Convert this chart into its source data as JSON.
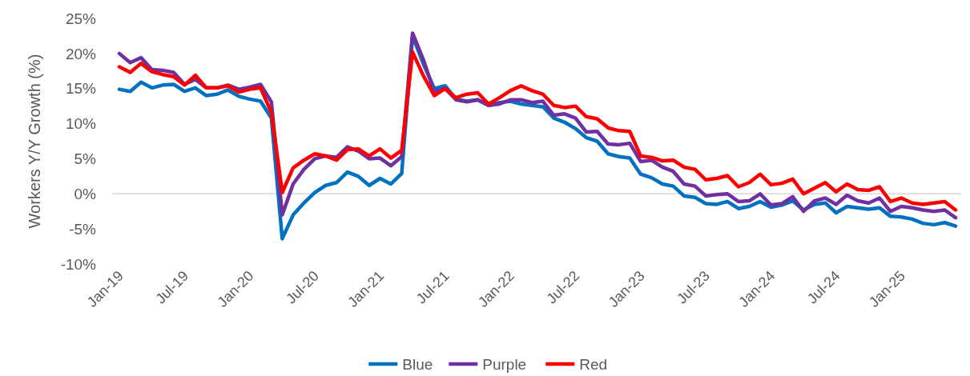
{
  "chart_data": {
    "type": "line",
    "ylabel": "Workers Y/Y Growth (%)",
    "categories": [
      "Jan-19",
      null,
      null,
      null,
      null,
      null,
      "Jul-19",
      null,
      null,
      null,
      null,
      null,
      "Jan-20",
      null,
      null,
      null,
      null,
      null,
      "Jul-20",
      null,
      null,
      null,
      null,
      null,
      "Jan-21",
      null,
      null,
      null,
      null,
      null,
      "Jul-21",
      null,
      null,
      null,
      null,
      null,
      "Jan-22",
      null,
      null,
      null,
      null,
      null,
      "Jul-22",
      null,
      null,
      null,
      null,
      null,
      "Jan-23",
      null,
      null,
      null,
      null,
      null,
      "Jul-23",
      null,
      null,
      null,
      null,
      null,
      "Jan-24",
      null,
      null,
      null,
      null,
      null,
      "Jul-24",
      null,
      null,
      null,
      null,
      null,
      "Jan-25",
      null,
      null,
      null,
      null,
      null
    ],
    "ylim": [
      -10,
      25
    ],
    "yticks": [
      {
        "value": -10,
        "label": "-10%"
      },
      {
        "value": -5,
        "label": "-5%"
      },
      {
        "value": 0,
        "label": "0%"
      },
      {
        "value": 5,
        "label": "5%"
      },
      {
        "value": 10,
        "label": "10%"
      },
      {
        "value": 15,
        "label": "15%"
      },
      {
        "value": 20,
        "label": "20%"
      },
      {
        "value": 25,
        "label": "25%"
      }
    ],
    "ref_lines": [
      {
        "axis": "y",
        "value": 0,
        "color": "#d9d9d9"
      }
    ],
    "legend": "bottom",
    "marker": "none",
    "line_style": "solid",
    "series": [
      {
        "name": "Blue",
        "color": "#0070c0",
        "values": [
          14.9,
          14.6,
          15.9,
          15.1,
          15.5,
          15.6,
          14.6,
          15.1,
          14.0,
          14.2,
          14.8,
          13.9,
          13.5,
          13.2,
          10.8,
          -6.4,
          -3.0,
          -1.3,
          0.2,
          1.2,
          1.6,
          3.1,
          2.5,
          1.2,
          2.2,
          1.4,
          2.9,
          22.5,
          18.5,
          15.0,
          15.4,
          13.5,
          13.2,
          13.4,
          12.6,
          13.0,
          13.2,
          12.8,
          12.6,
          12.4,
          10.8,
          10.2,
          9.3,
          8.0,
          7.5,
          5.7,
          5.3,
          5.1,
          2.8,
          2.3,
          1.4,
          1.1,
          -0.3,
          -0.5,
          -1.4,
          -1.5,
          -1.1,
          -2.1,
          -1.8,
          -1.1,
          -1.9,
          -1.6,
          -1.0,
          -2.3,
          -1.5,
          -1.3,
          -2.7,
          -1.8,
          -2.0,
          -2.2,
          -2.0,
          -3.2,
          -3.3,
          -3.6,
          -4.2,
          -4.4,
          -4.1,
          -4.6
        ]
      },
      {
        "name": "Purple",
        "color": "#7030a0",
        "values": [
          20.0,
          18.7,
          19.4,
          17.7,
          17.6,
          17.3,
          15.6,
          16.3,
          15.1,
          15.1,
          15.5,
          14.9,
          15.2,
          15.6,
          13.1,
          -3.0,
          1.4,
          3.5,
          5.0,
          5.4,
          5.2,
          6.7,
          6.1,
          5.0,
          5.1,
          4.0,
          5.3,
          22.9,
          19.1,
          14.5,
          15.0,
          13.4,
          13.1,
          13.4,
          12.6,
          12.8,
          13.4,
          13.4,
          13.0,
          13.2,
          11.2,
          11.4,
          10.8,
          8.8,
          8.9,
          7.1,
          7.0,
          7.2,
          4.6,
          4.8,
          3.8,
          3.2,
          1.4,
          1.1,
          -0.3,
          -0.1,
          0.0,
          -1.1,
          -1.0,
          0.0,
          -1.6,
          -1.4,
          -0.4,
          -2.5,
          -1.0,
          -0.6,
          -1.5,
          -0.2,
          -1.0,
          -1.3,
          -0.6,
          -2.5,
          -1.8,
          -2.0,
          -2.3,
          -2.5,
          -2.3,
          -3.4
        ]
      },
      {
        "name": "Red",
        "color": "#ff0000",
        "values": [
          18.1,
          17.3,
          18.6,
          17.4,
          17.0,
          16.7,
          15.5,
          16.9,
          15.1,
          15.1,
          15.4,
          14.5,
          14.9,
          15.1,
          11.6,
          0.2,
          3.7,
          4.8,
          5.7,
          5.4,
          4.8,
          6.3,
          6.4,
          5.4,
          6.4,
          5.1,
          6.2,
          20.2,
          16.8,
          14.0,
          15.0,
          13.7,
          14.2,
          14.4,
          12.8,
          13.7,
          14.7,
          15.4,
          14.7,
          14.2,
          12.6,
          12.3,
          12.5,
          11.0,
          10.7,
          9.4,
          9.0,
          8.9,
          5.4,
          5.2,
          4.7,
          4.8,
          3.8,
          3.5,
          2.0,
          2.2,
          2.6,
          1.0,
          1.6,
          2.8,
          1.3,
          1.5,
          2.1,
          0.0,
          0.8,
          1.6,
          0.3,
          1.4,
          0.6,
          0.5,
          1.0,
          -1.1,
          -0.6,
          -1.3,
          -1.5,
          -1.3,
          -1.1,
          -2.3
        ]
      }
    ]
  }
}
